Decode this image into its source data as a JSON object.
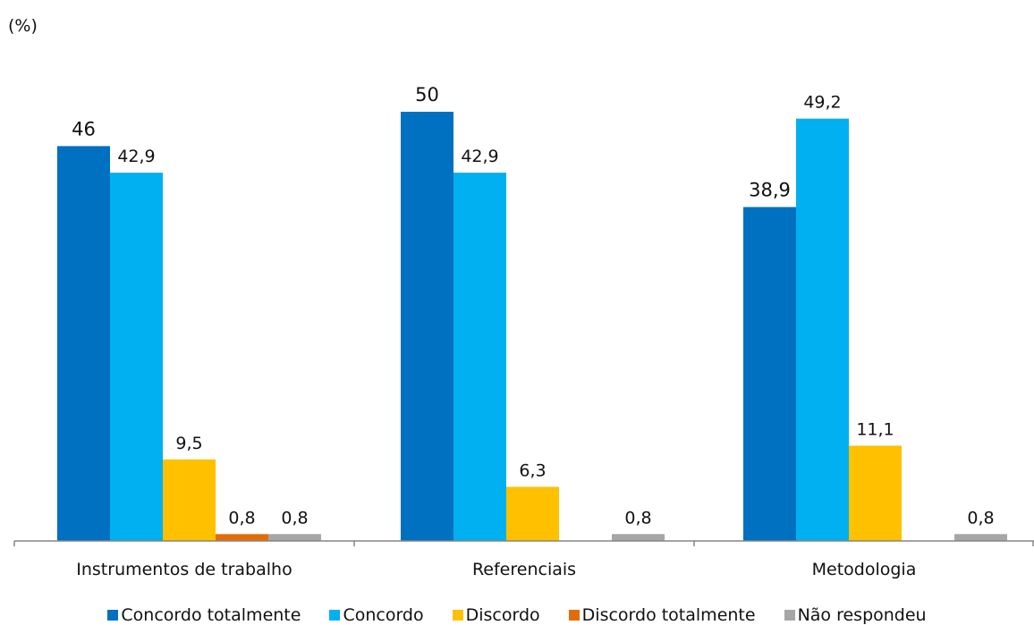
{
  "chart_data": {
    "type": "bar",
    "unit_label": "(%)",
    "categories": [
      "Instrumentos de trabalho",
      "Referenciais",
      "Metodologia"
    ],
    "series": [
      {
        "name": "Concordo totalmente",
        "color": "#0070C0",
        "values": [
          46,
          50,
          38.9
        ],
        "labels": [
          "46",
          "50",
          "38,9"
        ]
      },
      {
        "name": "Concordo",
        "color": "#00B0F0",
        "values": [
          42.9,
          42.9,
          49.2
        ],
        "labels": [
          "42,9",
          "42,9",
          "49,2"
        ]
      },
      {
        "name": "Discordo",
        "color": "#FFC000",
        "values": [
          9.5,
          6.3,
          11.1
        ],
        "labels": [
          "9,5",
          "6,3",
          "11,1"
        ]
      },
      {
        "name": "Discordo totalmente",
        "color": "#E36C0A",
        "values": [
          0.8,
          null,
          null
        ],
        "labels": [
          "0,8",
          null,
          null
        ]
      },
      {
        "name": "Não respondeu",
        "color": "#A6A6A6",
        "values": [
          0.8,
          0.8,
          0.8
        ],
        "labels": [
          "0,8",
          "0,8",
          "0,8"
        ]
      }
    ],
    "ylim": [
      0,
      56
    ],
    "grid": false,
    "legend_position": "bottom"
  }
}
